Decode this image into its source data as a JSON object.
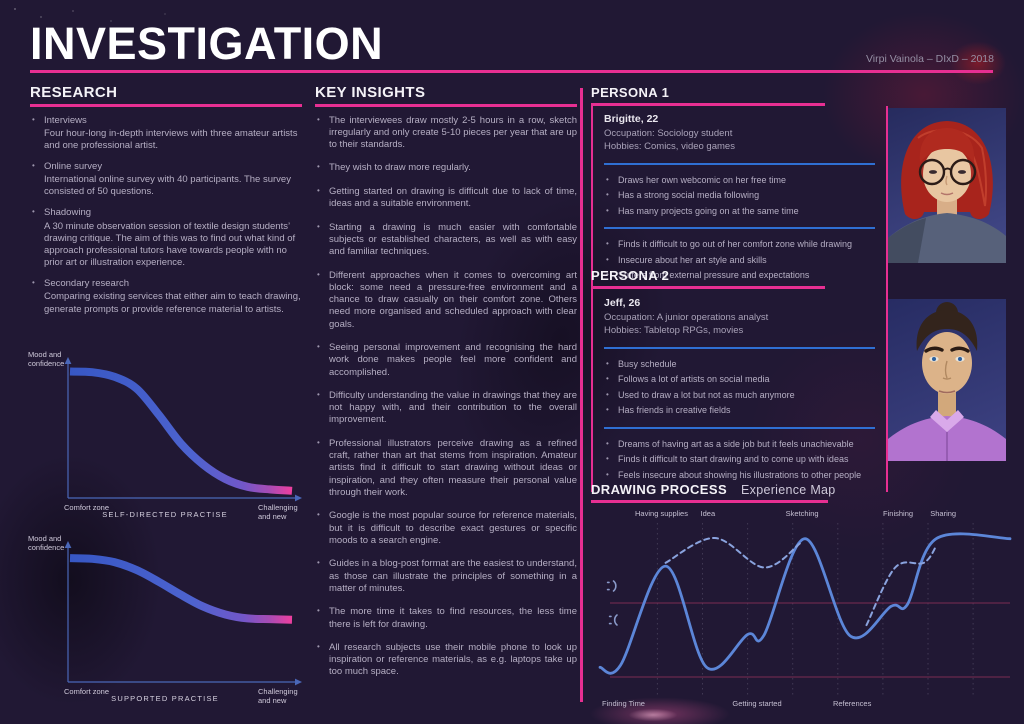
{
  "header": {
    "title": "INVESTIGATION",
    "credit": "Virpi Vainola – DIxD – 2018"
  },
  "colors": {
    "accent": "#e72f92",
    "divider_blue": "#2f6fd3",
    "curve_blue": "#5c86d8",
    "curve_dashed": "#8aa3de",
    "map_reference_line": "#7c2b52",
    "axis_blue": "#4a67b8",
    "practise_gradient": [
      "#3757c4",
      "#4d63cf",
      "#7257c9",
      "#a94bb4",
      "#ee3f9f"
    ]
  },
  "research": {
    "heading": "RESEARCH",
    "items": [
      {
        "title": "Interviews",
        "desc": "Four hour-long in-depth interviews with three amateur artists and one professional artist."
      },
      {
        "title": "Online survey",
        "desc": "International online survey with 40 participants. The survey consisted of 50 questions."
      },
      {
        "title": "Shadowing",
        "desc": "A 30 minute observation session of textile design students’ drawing critique. The aim of this was to find out what kind of approach professional tutors have towards people with no prior art or illustration experience."
      },
      {
        "title": "Secondary research",
        "desc": "Comparing existing services that either aim to teach drawing, generate prompts or provide reference material to artists."
      }
    ]
  },
  "key_insights": {
    "heading": "KEY INSIGHTS",
    "items": [
      "The interviewees draw mostly 2-5 hours in a row, sketch irregularly and only create 5-10 pieces per year that are up to their standards.",
      "They wish to draw more regularly.",
      "Getting started on drawing is difficult due to lack of time, ideas and a suitable environment.",
      "Starting a drawing is much easier with comfortable subjects or established characters, as well as with easy and familiar techniques.",
      "Different approaches when it comes to overcoming art block: some need a pressure-free environment and a chance to draw casually on their comfort zone. Others need more organised and scheduled approach with clear goals.",
      "Seeing personal improvement and recognising the hard work done makes people feel more confident and accomplished.",
      "Difficulty understanding the value in drawings that they are not happy with, and their contribution to the overall improvement.",
      "Professional illustrators perceive drawing as a refined craft, rather than art that stems from inspiration. Amateur artists find it difficult to start drawing without ideas or inspiration, and they often measure their personal value through their work.",
      "Google is the most popular source for reference materials, but it is difficult to describe exact gestures or specific moods to a search engine.",
      "Guides in a blog-post format are the easiest to understand, as those can illustrate the principles of something in a matter of minutes.",
      "The more time it takes to find resources, the less time there is left for drawing.",
      "All research subjects use their mobile phone to look up inspiration or reference materials, as e.g. laptops take up too much space."
    ]
  },
  "personas": [
    {
      "heading": "PERSONA 1",
      "name": "Brigitte, 22",
      "occupation": "Occupation: Sociology student",
      "hobbies": "Hobbies: Comics, video games",
      "facts": [
        "Draws her own webcomic on her free time",
        "Has a strong social media following",
        "Has many projects going on at the same time"
      ],
      "pains": [
        "Finds it difficult to go out of her comfort zone while drawing",
        "Insecure about her art style and skills",
        "Suffers from external pressure and expectations"
      ]
    },
    {
      "heading": "PERSONA 2",
      "name": "Jeff, 26",
      "occupation": "Occupation: A junior operations analyst",
      "hobbies": "Hobbies: Tabletop RPGs, movies",
      "facts": [
        "Busy schedule",
        "Follows a lot of artists on social media",
        "Used to draw a lot but not as much anymore",
        "Has friends in creative fields"
      ],
      "pains": [
        "Dreams of having art as a side job but it feels unachievable",
        "Finds it difficult to start drawing and to come up with ideas",
        "Feels insecure about showing his illustrations to other people"
      ]
    }
  ],
  "drawing_process": {
    "heading": "DRAWING PROCESS",
    "subtitle": "Experience Map"
  },
  "chart_data": [
    {
      "type": "line",
      "id": "self-directed-practise",
      "title": "SELF-DIRECTED PRACTISE",
      "ylabel": "Mood and confidence",
      "x_start_label": "Comfort zone",
      "x_end_label": "Challenging and new",
      "description": "Sigmoid decline: mood and confidence drop steeply from high in the comfort zone to very low when challenging and new",
      "points": [
        [
          0,
          0.95
        ],
        [
          0.1,
          0.945
        ],
        [
          0.2,
          0.91
        ],
        [
          0.3,
          0.82
        ],
        [
          0.4,
          0.62
        ],
        [
          0.5,
          0.4
        ],
        [
          0.6,
          0.24
        ],
        [
          0.7,
          0.13
        ],
        [
          0.8,
          0.07
        ],
        [
          0.9,
          0.05
        ],
        [
          1,
          0.04
        ]
      ]
    },
    {
      "type": "line",
      "id": "supported-practise",
      "title": "SUPPORTED PRACTISE",
      "ylabel": "Mood and confidence",
      "x_start_label": "Comfort zone",
      "x_end_label": "Challenging and new",
      "description": "Gentle decline: mood and confidence only drop to mid level when challenging and new",
      "points": [
        [
          0,
          0.93
        ],
        [
          0.1,
          0.925
        ],
        [
          0.2,
          0.9
        ],
        [
          0.3,
          0.84
        ],
        [
          0.4,
          0.75
        ],
        [
          0.5,
          0.65
        ],
        [
          0.6,
          0.56
        ],
        [
          0.7,
          0.5
        ],
        [
          0.8,
          0.47
        ],
        [
          0.9,
          0.465
        ],
        [
          1,
          0.46
        ]
      ]
    },
    {
      "type": "line",
      "id": "experience-map",
      "title": "Experience Map",
      "top_labels": [
        "Having supplies",
        "Idea",
        "Sketching",
        "Finishing",
        "Sharing"
      ],
      "top_labels_x_pct": [
        15,
        26.3,
        49.3,
        72.7,
        83.7
      ],
      "bottom_labels": [
        "Finding Time",
        "Getting started",
        "References"
      ],
      "bottom_labels_x_pct": [
        0.5,
        38.3,
        61.5
      ],
      "y_icons": [
        "happy-face",
        "sad-face"
      ],
      "y_range": [
        -1,
        1
      ],
      "series": [
        {
          "name": "solid-line",
          "points": [
            [
              0,
              -0.96
            ],
            [
              5,
              -0.93
            ],
            [
              16,
              0.55
            ],
            [
              26,
              -0.96
            ],
            [
              36,
              -0.47
            ],
            [
              40,
              -0.48
            ],
            [
              50,
              0.96
            ],
            [
              61,
              -0.49
            ],
            [
              71,
              -0.05
            ],
            [
              75,
              -0.02
            ],
            [
              82,
              0.96
            ],
            [
              100,
              0.96
            ]
          ]
        },
        {
          "name": "dashed-line-segment-1",
          "points": [
            [
              16,
              0.6
            ],
            [
              28,
              0.97
            ],
            [
              40,
              0.53
            ],
            [
              49,
              0.9
            ]
          ]
        },
        {
          "name": "dashed-line-segment-2",
          "points": [
            [
              65,
              -0.33
            ],
            [
              72,
              0.53
            ],
            [
              79,
              0.6
            ],
            [
              82,
              0.85
            ]
          ]
        }
      ]
    }
  ]
}
